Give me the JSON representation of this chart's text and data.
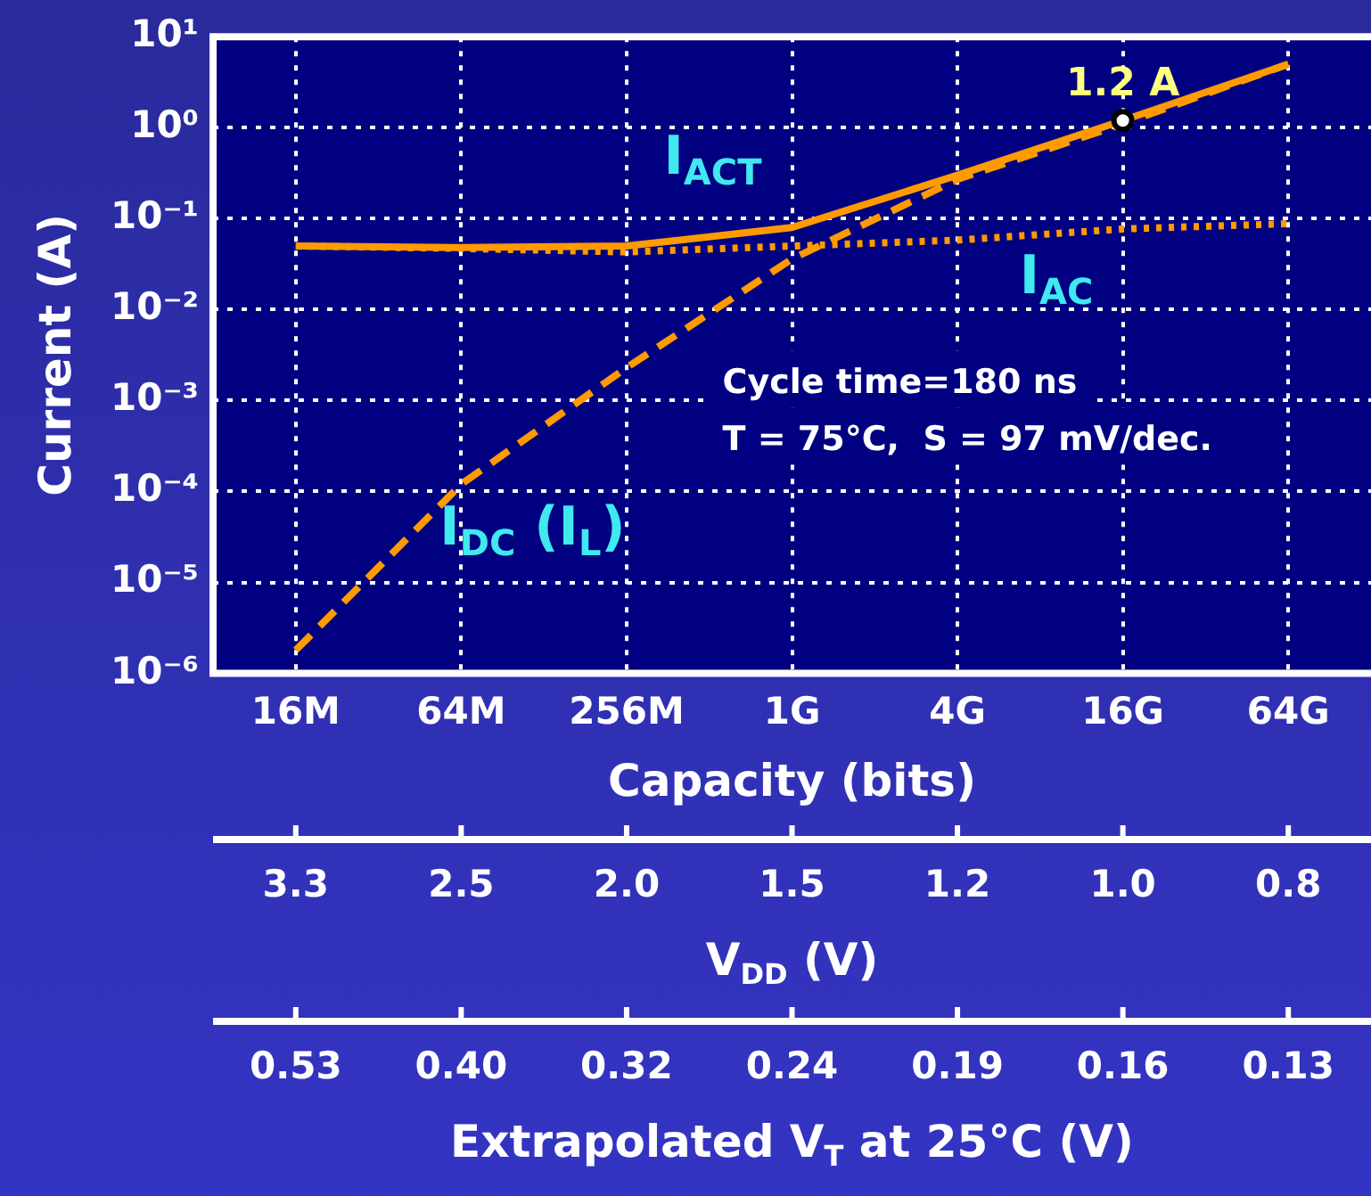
{
  "chart_data": {
    "type": "line",
    "xlabel": "Capacity (bits)",
    "ylabel": "Current (A)",
    "log": true,
    "grid": true,
    "categories": [
      "16M",
      "64M",
      "256M",
      "1G",
      "4G",
      "16G",
      "64G"
    ],
    "ylim": [
      1e-06,
      10
    ],
    "yticks": [
      {
        "value": 10,
        "label": "10¹"
      },
      {
        "value": 1,
        "label": "10⁰"
      },
      {
        "value": 0.1,
        "label": "10⁻¹"
      },
      {
        "value": 0.01,
        "label": "10⁻²"
      },
      {
        "value": 0.001,
        "label": "10⁻³"
      },
      {
        "value": 0.0001,
        "label": "10⁻⁴"
      },
      {
        "value": 1e-05,
        "label": "10⁻⁵"
      },
      {
        "value": 1e-06,
        "label": "10⁻⁶"
      }
    ],
    "series": [
      {
        "name": "I$_{ACT}$",
        "color": "#ff9a00",
        "line_style": "solid",
        "values": [
          0.05,
          0.048,
          0.05,
          0.08,
          0.3,
          1.2,
          5
        ]
      },
      {
        "name": "I$_{AC}$",
        "color": "#ff9a00",
        "line_style": "dotted",
        "values": [
          0.05,
          0.047,
          0.043,
          0.05,
          0.058,
          0.077,
          0.088
        ]
      },
      {
        "name": "I$_{DC}$ (I$_{L}$)",
        "color": "#ff9a00",
        "line_style": "dashed",
        "values": [
          1.8e-06,
          0.00012,
          0.0023,
          0.036,
          0.27,
          1.1,
          5
        ]
      }
    ],
    "annotations": [
      {
        "text": "1.2 A",
        "x": "16G",
        "y": 1.2
      },
      "Cycle time=180 ns",
      "T = 75°C,  S = 97 mV/dec.",
      {
        "text": "3.3",
        "x": "16M"
      },
      {
        "text": "2.5",
        "x": "64M"
      },
      {
        "text": "2.0",
        "x": "256M"
      },
      {
        "text": "1.5",
        "x": "1G"
      },
      {
        "text": "1.2",
        "x": "4G"
      },
      {
        "text": "1.0",
        "x": "16G"
      },
      {
        "text": "0.8",
        "x": "64G"
      },
      "V$_{DD}$ (V)",
      {
        "text": "0.53",
        "x": "16M"
      },
      {
        "text": "0.40",
        "x": "64M"
      },
      {
        "text": "0.32",
        "x": "256M"
      },
      {
        "text": "0.24",
        "x": "1G"
      },
      {
        "text": "0.19",
        "x": "4G"
      },
      {
        "text": "0.16",
        "x": "16G"
      },
      {
        "text": "0.13",
        "x": "64G"
      },
      "Extrapolated V$_{T}$ at 25°C (V)"
    ]
  }
}
